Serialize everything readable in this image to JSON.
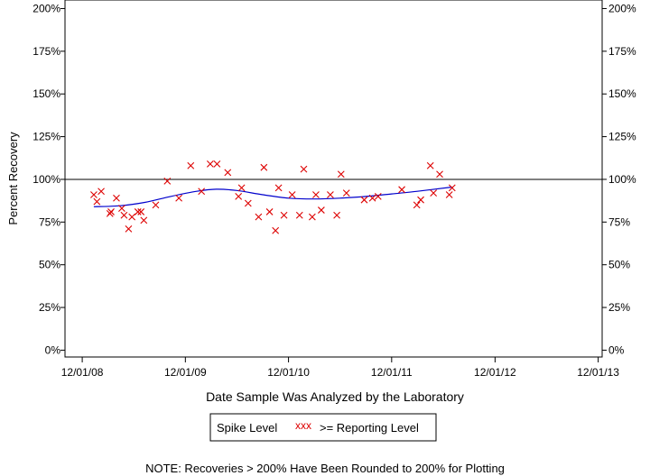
{
  "chart_data": {
    "type": "scatter",
    "xlabel": "Date Sample Was Analyzed by the Laboratory",
    "ylabel": "Percent Recovery",
    "x_ticks": [
      "12/01/08",
      "12/01/09",
      "12/01/10",
      "12/01/11",
      "12/01/12",
      "12/01/13"
    ],
    "y_ticks": [
      "0%",
      "25%",
      "50%",
      "75%",
      "100%",
      "125%",
      "150%",
      "175%",
      "200%"
    ],
    "xlim": [
      "2008-10-01",
      "2013-12-15"
    ],
    "ylim": [
      -4,
      205
    ],
    "reference_line": 100,
    "grid": false,
    "legend": {
      "placement": "bottom-center",
      "title": "Spike Level",
      "marker_glyph": "xxx",
      "entry": ">= Reporting Level"
    },
    "series": [
      {
        "name": ">= Reporting Level",
        "marker": "x",
        "color": "#dd0000",
        "points": [
          [
            "2009-01-11",
            91
          ],
          [
            "2009-01-22",
            87
          ],
          [
            "2009-02-06",
            93
          ],
          [
            "2009-03-09",
            80
          ],
          [
            "2009-03-13",
            81
          ],
          [
            "2009-04-01",
            89
          ],
          [
            "2009-04-20",
            83
          ],
          [
            "2009-04-28",
            79
          ],
          [
            "2009-05-14",
            71
          ],
          [
            "2009-05-26",
            78
          ],
          [
            "2009-06-16",
            81
          ],
          [
            "2009-06-27",
            81
          ],
          [
            "2009-07-07",
            76
          ],
          [
            "2009-08-18",
            85
          ],
          [
            "2009-09-28",
            99
          ],
          [
            "2009-11-08",
            89
          ],
          [
            "2009-12-20",
            108
          ],
          [
            "2010-01-27",
            93
          ],
          [
            "2010-02-27",
            109
          ],
          [
            "2010-03-23",
            109
          ],
          [
            "2010-04-30",
            104
          ],
          [
            "2010-06-07",
            90
          ],
          [
            "2010-06-18",
            95
          ],
          [
            "2010-07-11",
            86
          ],
          [
            "2010-08-17",
            78
          ],
          [
            "2010-09-05",
            107
          ],
          [
            "2010-09-25",
            81
          ],
          [
            "2010-10-16",
            70
          ],
          [
            "2010-10-27",
            95
          ],
          [
            "2010-11-15",
            79
          ],
          [
            "2010-12-14",
            91
          ],
          [
            "2011-01-09",
            79
          ],
          [
            "2011-01-24",
            106
          ],
          [
            "2011-02-23",
            78
          ],
          [
            "2011-03-08",
            91
          ],
          [
            "2011-03-27",
            82
          ],
          [
            "2011-04-28",
            91
          ],
          [
            "2011-05-21",
            79
          ],
          [
            "2011-06-05",
            103
          ],
          [
            "2011-06-24",
            92
          ],
          [
            "2011-08-26",
            88
          ],
          [
            "2011-09-24",
            89
          ],
          [
            "2011-10-14",
            90
          ],
          [
            "2012-01-06",
            94
          ],
          [
            "2012-02-28",
            85
          ],
          [
            "2012-03-13",
            88
          ],
          [
            "2012-04-16",
            108
          ],
          [
            "2012-04-27",
            92
          ],
          [
            "2012-05-19",
            103
          ],
          [
            "2012-06-22",
            91
          ],
          [
            "2012-07-02",
            95
          ]
        ]
      },
      {
        "name": "trend",
        "type": "line",
        "color": "#0000cc",
        "points": [
          [
            "2009-01-11",
            84
          ],
          [
            "2009-04-10",
            84.5
          ],
          [
            "2009-07-10",
            86.5
          ],
          [
            "2009-10-10",
            90
          ],
          [
            "2010-01-10",
            93
          ],
          [
            "2010-03-20",
            94.2
          ],
          [
            "2010-06-01",
            93.5
          ],
          [
            "2010-09-01",
            91
          ],
          [
            "2010-12-01",
            89
          ],
          [
            "2011-03-01",
            88.5
          ],
          [
            "2011-06-01",
            89
          ],
          [
            "2011-09-01",
            90
          ],
          [
            "2011-12-01",
            91.5
          ],
          [
            "2012-03-01",
            93
          ],
          [
            "2012-07-02",
            95.5
          ]
        ]
      }
    ],
    "note": "NOTE: Recoveries > 200% Have Been Rounded to 200% for Plotting"
  }
}
